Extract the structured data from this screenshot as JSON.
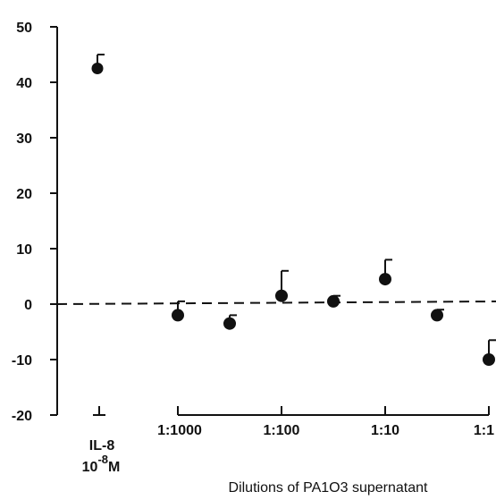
{
  "chart_data": {
    "type": "scatter",
    "title": "",
    "xlabel": "Dilutions of PA1O3 supernatant",
    "ylabel": "",
    "ylim": [
      -20,
      50
    ],
    "yticks": [
      -20,
      -10,
      0,
      10,
      20,
      30,
      40,
      50
    ],
    "reference_line": {
      "y": 0,
      "style": "dashed"
    },
    "control": {
      "label_line1": "IL-8",
      "label_line2_base": "10",
      "label_line2_sup": "-8",
      "label_line2_unit": "M",
      "y": 42.5,
      "err_upper": 45
    },
    "dilution_ticks": [
      "1:1000",
      "1:100",
      "1:10",
      "1:1"
    ],
    "points": [
      {
        "x": -3.0,
        "y": -2.0,
        "err_upper": 0.5
      },
      {
        "x": -2.5,
        "y": -3.5,
        "err_upper": -2.0
      },
      {
        "x": -2.0,
        "y": 1.5,
        "err_upper": 6.0
      },
      {
        "x": -1.5,
        "y": 0.5,
        "err_upper": 1.5
      },
      {
        "x": -1.0,
        "y": 4.5,
        "err_upper": 8.0
      },
      {
        "x": -0.5,
        "y": -2.0,
        "err_upper": -1.0
      },
      {
        "x": 0.0,
        "y": -10.0,
        "err_upper": -6.5
      }
    ]
  }
}
